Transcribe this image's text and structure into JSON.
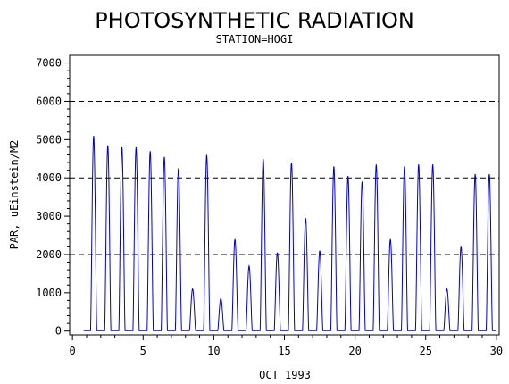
{
  "chart_data": {
    "type": "line",
    "title": "PHOTOSYNTHETIC RADIATION",
    "subtitle": "STATION=HOGI",
    "xlabel": "OCT 1993",
    "ylabel": "PAR, uEinstein/M2",
    "xlim": [
      -0.2,
      30.2
    ],
    "ylim": [
      -100,
      7200
    ],
    "xticks": [
      0,
      5,
      10,
      15,
      20,
      25,
      30
    ],
    "yticks": [
      0,
      1000,
      2000,
      3000,
      4000,
      5000,
      6000,
      7000
    ],
    "grid_lines_y": [
      2000,
      4000,
      6000
    ],
    "series_color": "#0000cc",
    "series": [
      {
        "name": "",
        "daily_peaks": [
          {
            "day": 1,
            "value": 5100
          },
          {
            "day": 2,
            "value": 4850
          },
          {
            "day": 3,
            "value": 4800
          },
          {
            "day": 4,
            "value": 4800
          },
          {
            "day": 5,
            "value": 4700
          },
          {
            "day": 6,
            "value": 4550
          },
          {
            "day": 7,
            "value": 4250
          },
          {
            "day": 8,
            "value": 1100
          },
          {
            "day": 9,
            "value": 4600
          },
          {
            "day": 10,
            "value": 850
          },
          {
            "day": 11,
            "value": 2400
          },
          {
            "day": 12,
            "value": 1700
          },
          {
            "day": 13,
            "value": 4500
          },
          {
            "day": 14,
            "value": 2050
          },
          {
            "day": 15,
            "value": 4400
          },
          {
            "day": 16,
            "value": 2950
          },
          {
            "day": 17,
            "value": 2100
          },
          {
            "day": 18,
            "value": 4300
          },
          {
            "day": 19,
            "value": 4050
          },
          {
            "day": 20,
            "value": 3900
          },
          {
            "day": 21,
            "value": 4350
          },
          {
            "day": 22,
            "value": 2400
          },
          {
            "day": 23,
            "value": 4300
          },
          {
            "day": 24,
            "value": 4350
          },
          {
            "day": 25,
            "value": 4350
          },
          {
            "day": 26,
            "value": 1100
          },
          {
            "day": 27,
            "value": 2200
          },
          {
            "day": 28,
            "value": 4100
          },
          {
            "day": 29,
            "value": 4100
          }
        ]
      }
    ]
  }
}
